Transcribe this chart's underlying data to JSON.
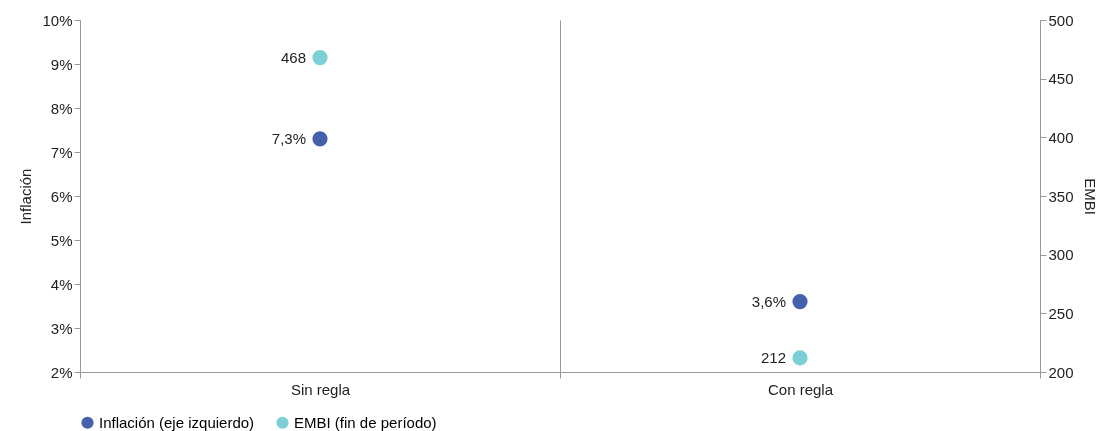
{
  "chart_data": {
    "type": "scatter",
    "ylabel": "Inflación",
    "y2label": "EMBI",
    "categories": [
      "Sin regla",
      "Con regla"
    ],
    "series": [
      {
        "name": "Inflación (eje izquierdo)",
        "color": "#4560ad",
        "values": [
          7.3,
          3.6
        ],
        "value_labels": [
          "7,3%",
          "3,6%"
        ]
      },
      {
        "name": "EMBI (fin de período)",
        "color": "#7dcfd6",
        "values": [
          468,
          212
        ],
        "value_labels": [
          "468",
          "212"
        ],
        "axis": "y2"
      }
    ],
    "ylim": [
      2,
      10
    ],
    "yticks": [
      {
        "value": 2,
        "label": "2%"
      },
      {
        "value": 3,
        "label": "3%"
      },
      {
        "value": 4,
        "label": "4%"
      },
      {
        "value": 5,
        "label": "5%"
      },
      {
        "value": 6,
        "label": "6%"
      },
      {
        "value": 7,
        "label": "7%"
      },
      {
        "value": 8,
        "label": "8%"
      },
      {
        "value": 9,
        "label": "9%"
      },
      {
        "value": 10,
        "label": "10%"
      }
    ],
    "y2lim": [
      200,
      500
    ],
    "y2ticks": [
      200,
      250,
      300,
      350,
      400,
      450,
      500
    ],
    "grid": "x",
    "legend": "bottom",
    "marker": "circle"
  }
}
